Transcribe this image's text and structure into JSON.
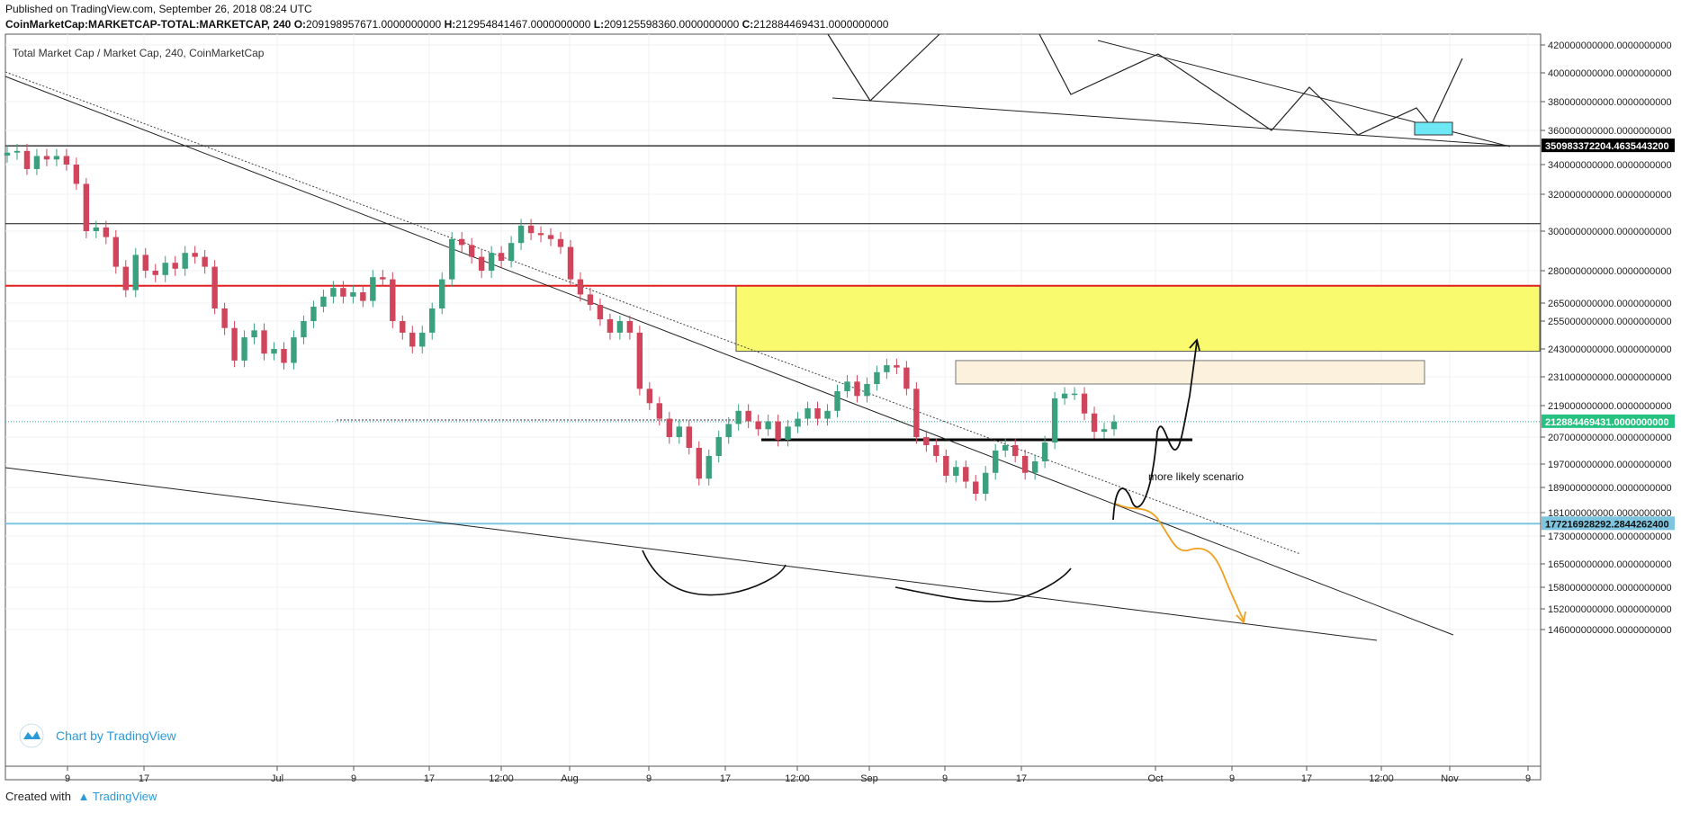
{
  "header": {
    "published": "Published on TradingView.com, September 26, 2018 08:24 UTC",
    "symbol": "CoinMarketCap:MARKETCAP-TOTAL:MARKETCAP, 240",
    "o_label": "O:",
    "o_value": "209198957671.0000000000",
    "h_label": "H:",
    "h_value": "212954841467.0000000000",
    "l_label": "L:",
    "l_value": "209125598360.0000000000",
    "c_label": "C:",
    "c_value": "212884469431.0000000000"
  },
  "chart_title": "Total Market Cap / Market Cap, 240, CoinMarketCap",
  "watermark": "Chart by TradingView",
  "annotation": "more likely scenario",
  "footer": {
    "created_with": "Created with",
    "brand": "TradingView"
  },
  "colors": {
    "up": "#3aa07d",
    "down": "#d0455b",
    "resistance": "#e02020",
    "support_blue": "#7ec6e0",
    "zone_yellow": "#fafa6e",
    "zone_beige": "#fbf1dc",
    "orange_path": "#f0a020",
    "label_black": "#000000",
    "label_green": "#26c281",
    "label_blue": "#7ec6e0"
  },
  "chart_data": {
    "type": "candlestick",
    "ylim": [
      140000000000,
      424000000000
    ],
    "x_ticks": [
      "9",
      "17",
      "Jul",
      "9",
      "17",
      "12:00",
      "Aug",
      "9",
      "17",
      "12:00",
      "Sep",
      "9",
      "17",
      "Oct",
      "9",
      "17",
      "12:00",
      "Nov",
      "9"
    ],
    "y_ticks": [
      {
        "value": 420000000000,
        "label": "420000000000.0000000000"
      },
      {
        "value": 400000000000,
        "label": "400000000000.0000000000"
      },
      {
        "value": 380000000000,
        "label": "380000000000.0000000000"
      },
      {
        "value": 360000000000,
        "label": "360000000000.0000000000"
      },
      {
        "value": 340000000000,
        "label": "340000000000.0000000000"
      },
      {
        "value": 320000000000,
        "label": "320000000000.0000000000"
      },
      {
        "value": 300000000000,
        "label": "300000000000.0000000000"
      },
      {
        "value": 280000000000,
        "label": "280000000000.0000000000"
      },
      {
        "value": 265000000000,
        "label": "265000000000.0000000000"
      },
      {
        "value": 255000000000,
        "label": "255000000000.0000000000"
      },
      {
        "value": 243000000000,
        "label": "243000000000.0000000000"
      },
      {
        "value": 231000000000,
        "label": "231000000000.0000000000"
      },
      {
        "value": 219000000000,
        "label": "219000000000.0000000000"
      },
      {
        "value": 207000000000,
        "label": "207000000000.0000000000"
      },
      {
        "value": 197000000000,
        "label": "197000000000.0000000000"
      },
      {
        "value": 189000000000,
        "label": "189000000000.0000000000"
      },
      {
        "value": 181000000000,
        "label": "181000000000.0000000000"
      },
      {
        "value": 173000000000,
        "label": "173000000000.0000000000"
      },
      {
        "value": 165000000000,
        "label": "165000000000.0000000000"
      },
      {
        "value": 158000000000,
        "label": "158000000000.0000000000"
      },
      {
        "value": 152000000000,
        "label": "152000000000.0000000000"
      },
      {
        "value": 146000000000,
        "label": "146000000000.0000000000"
      }
    ],
    "price_labels": [
      {
        "value": 350983372204,
        "label": "350983372204.4635443200",
        "style": "black"
      },
      {
        "value": 212884469431,
        "label": "212884469431.0000000000",
        "style": "green"
      },
      {
        "value": 177216928292,
        "label": "177216928292.2844262400",
        "style": "blue"
      }
    ],
    "levels": {
      "resistance_red": 273000000000,
      "horizontal_top": 350983372204,
      "horizontal_mid": 304000000000,
      "support_blue": 177216928292,
      "support_black": 206000000000
    },
    "zones": {
      "yellow": [
        242000000000,
        273000000000
      ],
      "beige": [
        228000000000,
        238000000000
      ]
    },
    "closes": [
      347000000000,
      348000000000,
      337000000000,
      345000000000,
      343000000000,
      345000000000,
      340000000000,
      327000000000,
      300000000000,
      302000000000,
      297000000000,
      282000000000,
      271000000000,
      288000000000,
      280000000000,
      278000000000,
      284000000000,
      281000000000,
      289000000000,
      287000000000,
      282000000000,
      262000000000,
      252000000000,
      238000000000,
      248000000000,
      251000000000,
      241000000000,
      243000000000,
      237000000000,
      248000000000,
      255000000000,
      263000000000,
      268000000000,
      272000000000,
      268000000000,
      270000000000,
      266000000000,
      277000000000,
      276000000000,
      255000000000,
      250000000000,
      244000000000,
      250000000000,
      262000000000,
      276000000000,
      296000000000,
      293000000000,
      287000000000,
      280000000000,
      289000000000,
      285000000000,
      294000000000,
      303000000000,
      299000000000,
      298000000000,
      296000000000,
      292000000000,
      276000000000,
      269000000000,
      264000000000,
      256000000000,
      250000000000,
      255000000000,
      250000000000,
      226000000000,
      220000000000,
      214000000000,
      207000000000,
      211000000000,
      203000000000,
      192000000000,
      200000000000,
      207000000000,
      212000000000,
      217000000000,
      213000000000,
      210000000000,
      213000000000,
      206000000000,
      211000000000,
      214000000000,
      218000000000,
      214000000000,
      217000000000,
      225000000000,
      229000000000,
      223000000000,
      228000000000,
      233000000000,
      236000000000,
      235000000000,
      226000000000,
      207000000000,
      204000000000,
      200000000000,
      193000000000,
      196000000000,
      191000000000,
      187000000000,
      194000000000,
      202000000000,
      204000000000,
      200000000000,
      194000000000,
      198000000000,
      205000000000,
      222000000000,
      224000000000,
      224000000000,
      216000000000,
      209000000000,
      210000000000,
      212884469431
    ]
  }
}
